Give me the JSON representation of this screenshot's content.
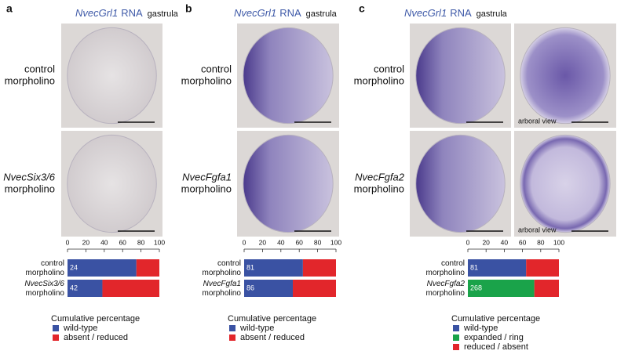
{
  "panels": [
    {
      "label": "a",
      "header": {
        "gene": "NvecGrl1",
        "probe": "RNA",
        "stage": "gastrula"
      },
      "rows": [
        [
          "control",
          "morpholino"
        ],
        [
          "NvecSix3/6",
          "morpholino"
        ]
      ]
    },
    {
      "label": "b",
      "header": {
        "gene": "NvecGrl1",
        "probe": "RNA",
        "stage": "gastrula"
      },
      "rows": [
        [
          "control",
          "morpholino"
        ],
        [
          "NvecFgfa1",
          "morpholino"
        ]
      ]
    },
    {
      "label": "c",
      "header": {
        "gene": "NvecGrl1",
        "probe": "RNA",
        "stage": "gastrula"
      },
      "rows": [
        [
          "control",
          "morpholino"
        ],
        [
          "NvecFgfa2",
          "morpholino"
        ]
      ],
      "annotations": [
        "arboral view",
        "arboral view"
      ]
    }
  ],
  "chart_data": [
    {
      "type": "bar",
      "orientation": "horizontal",
      "stacked": true,
      "categories": [
        [
          "control",
          "morpholino"
        ],
        [
          "NvecSix3/6",
          "morpholino"
        ]
      ],
      "n": [
        24,
        42
      ],
      "series": [
        {
          "name": "wild-type",
          "color": "#3a52a3",
          "values": [
            75,
            38
          ]
        },
        {
          "name": "absent / reduced",
          "color": "#e2262b",
          "values": [
            25,
            62
          ]
        }
      ],
      "xlim": [
        0,
        100
      ],
      "xticks": [
        0,
        20,
        40,
        60,
        80,
        100
      ],
      "legend_title": "Cumulative percentage"
    },
    {
      "type": "bar",
      "orientation": "horizontal",
      "stacked": true,
      "categories": [
        [
          "control",
          "morpholino"
        ],
        [
          "NvecFgfa1",
          "morpholino"
        ]
      ],
      "n": [
        81,
        86
      ],
      "series": [
        {
          "name": "wild-type",
          "color": "#3a52a3",
          "values": [
            64,
            53
          ]
        },
        {
          "name": "absent / reduced",
          "color": "#e2262b",
          "values": [
            36,
            47
          ]
        }
      ],
      "xlim": [
        0,
        100
      ],
      "xticks": [
        0,
        20,
        40,
        60,
        80,
        100
      ],
      "legend_title": "Cumulative percentage"
    },
    {
      "type": "bar",
      "orientation": "horizontal",
      "stacked": true,
      "categories": [
        [
          "control",
          "morpholino"
        ],
        [
          "NvecFgfa2",
          "morpholino"
        ]
      ],
      "n": [
        81,
        268
      ],
      "series": [
        {
          "name": "wild-type",
          "color": "#3a52a3",
          "values": [
            64,
            0
          ]
        },
        {
          "name": "expanded / ring",
          "color": "#1aa34a",
          "values": [
            0,
            73
          ]
        },
        {
          "name": "reduced / absent",
          "color": "#e2262b",
          "values": [
            36,
            27
          ]
        }
      ],
      "xlim": [
        0,
        100
      ],
      "xticks": [
        0,
        20,
        40,
        60,
        80,
        100
      ],
      "legend_title": "Cumulative percentage"
    }
  ]
}
